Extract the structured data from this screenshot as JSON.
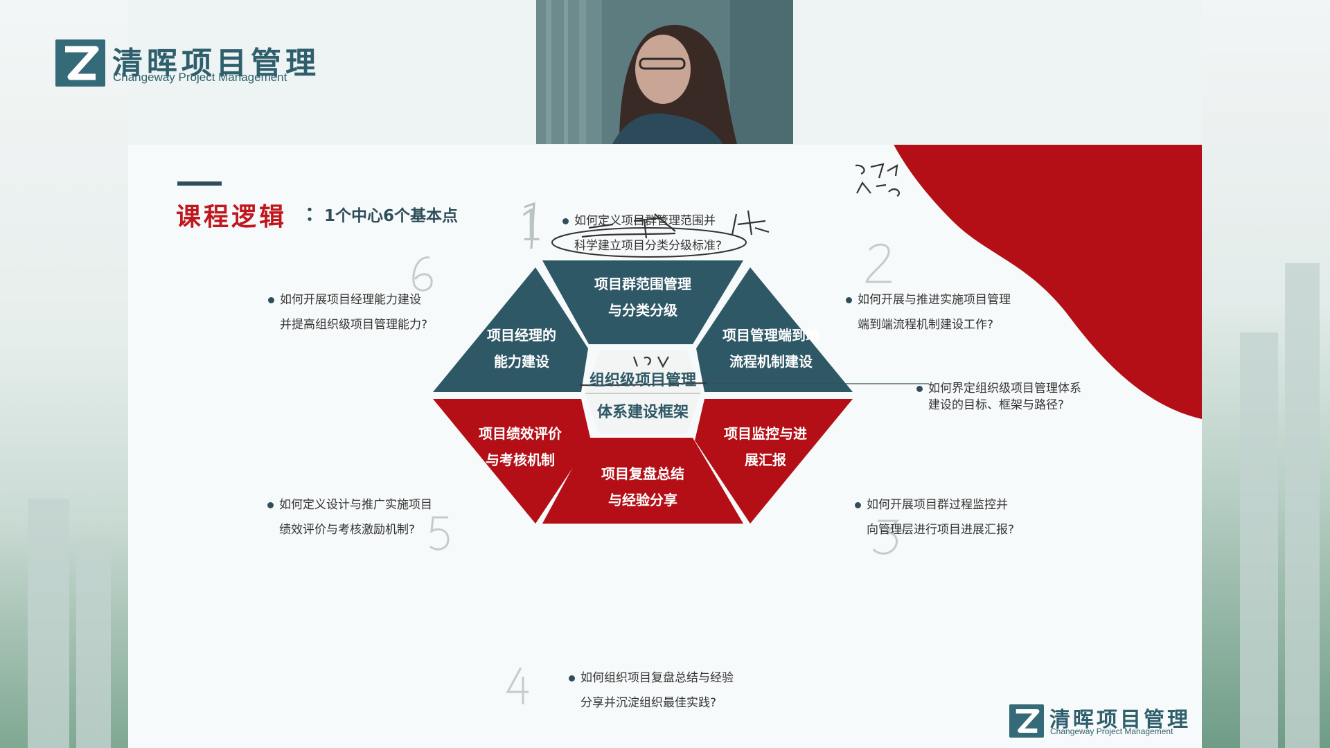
{
  "brand": {
    "cn": "清晖项目管理",
    "en": "Changeway Project Management"
  },
  "title": {
    "main": "课程逻辑",
    "separator": "：",
    "sub": "1个中心6个基本点"
  },
  "center": {
    "line1": "组织级项目管理",
    "line2": "体系建设框架"
  },
  "segments": [
    {
      "line1": "项目群范围管理",
      "line2": "与分类分级"
    },
    {
      "line1": "项目管理端到端",
      "line2": "流程机制建设"
    },
    {
      "line1": "项目监控与进",
      "line2": "展汇报"
    },
    {
      "line1": "项目复盘总结",
      "line2": "与经验分享"
    },
    {
      "line1": "项目绩效评价",
      "line2": "与考核机制"
    },
    {
      "line1": "项目经理的",
      "line2": "能力建设"
    }
  ],
  "questions": [
    {
      "line1": "如何定义项目群管理范围并",
      "line2": "科学建立项目分类分级标准?"
    },
    {
      "line1": "如何开展与推进实施项目管理",
      "line2": "端到端流程机制建设工作?"
    },
    {
      "line1": "如何开展项目群过程监控并",
      "line2": "向管理层进行项目进展汇报?"
    },
    {
      "line1": "如何组织项目复盘总结与经验",
      "line2": "分享并沉淀组织最佳实践?"
    },
    {
      "line1": "如何定义设计与推广实施项目",
      "line2": "绩效评价与考核激励机制?"
    },
    {
      "line1": "如何开展项目经理能力建设",
      "line2": "并提高组织级项目管理能力?"
    },
    {
      "line1": "如何界定组织级项目管理体系",
      "line2": "建设的目标、框架与路径?"
    }
  ],
  "numbers": [
    "1",
    "2",
    "3",
    "4",
    "5",
    "6"
  ],
  "colors": {
    "teal": "#2f5866",
    "red": "#b40f16",
    "title_red": "#c0161d"
  }
}
